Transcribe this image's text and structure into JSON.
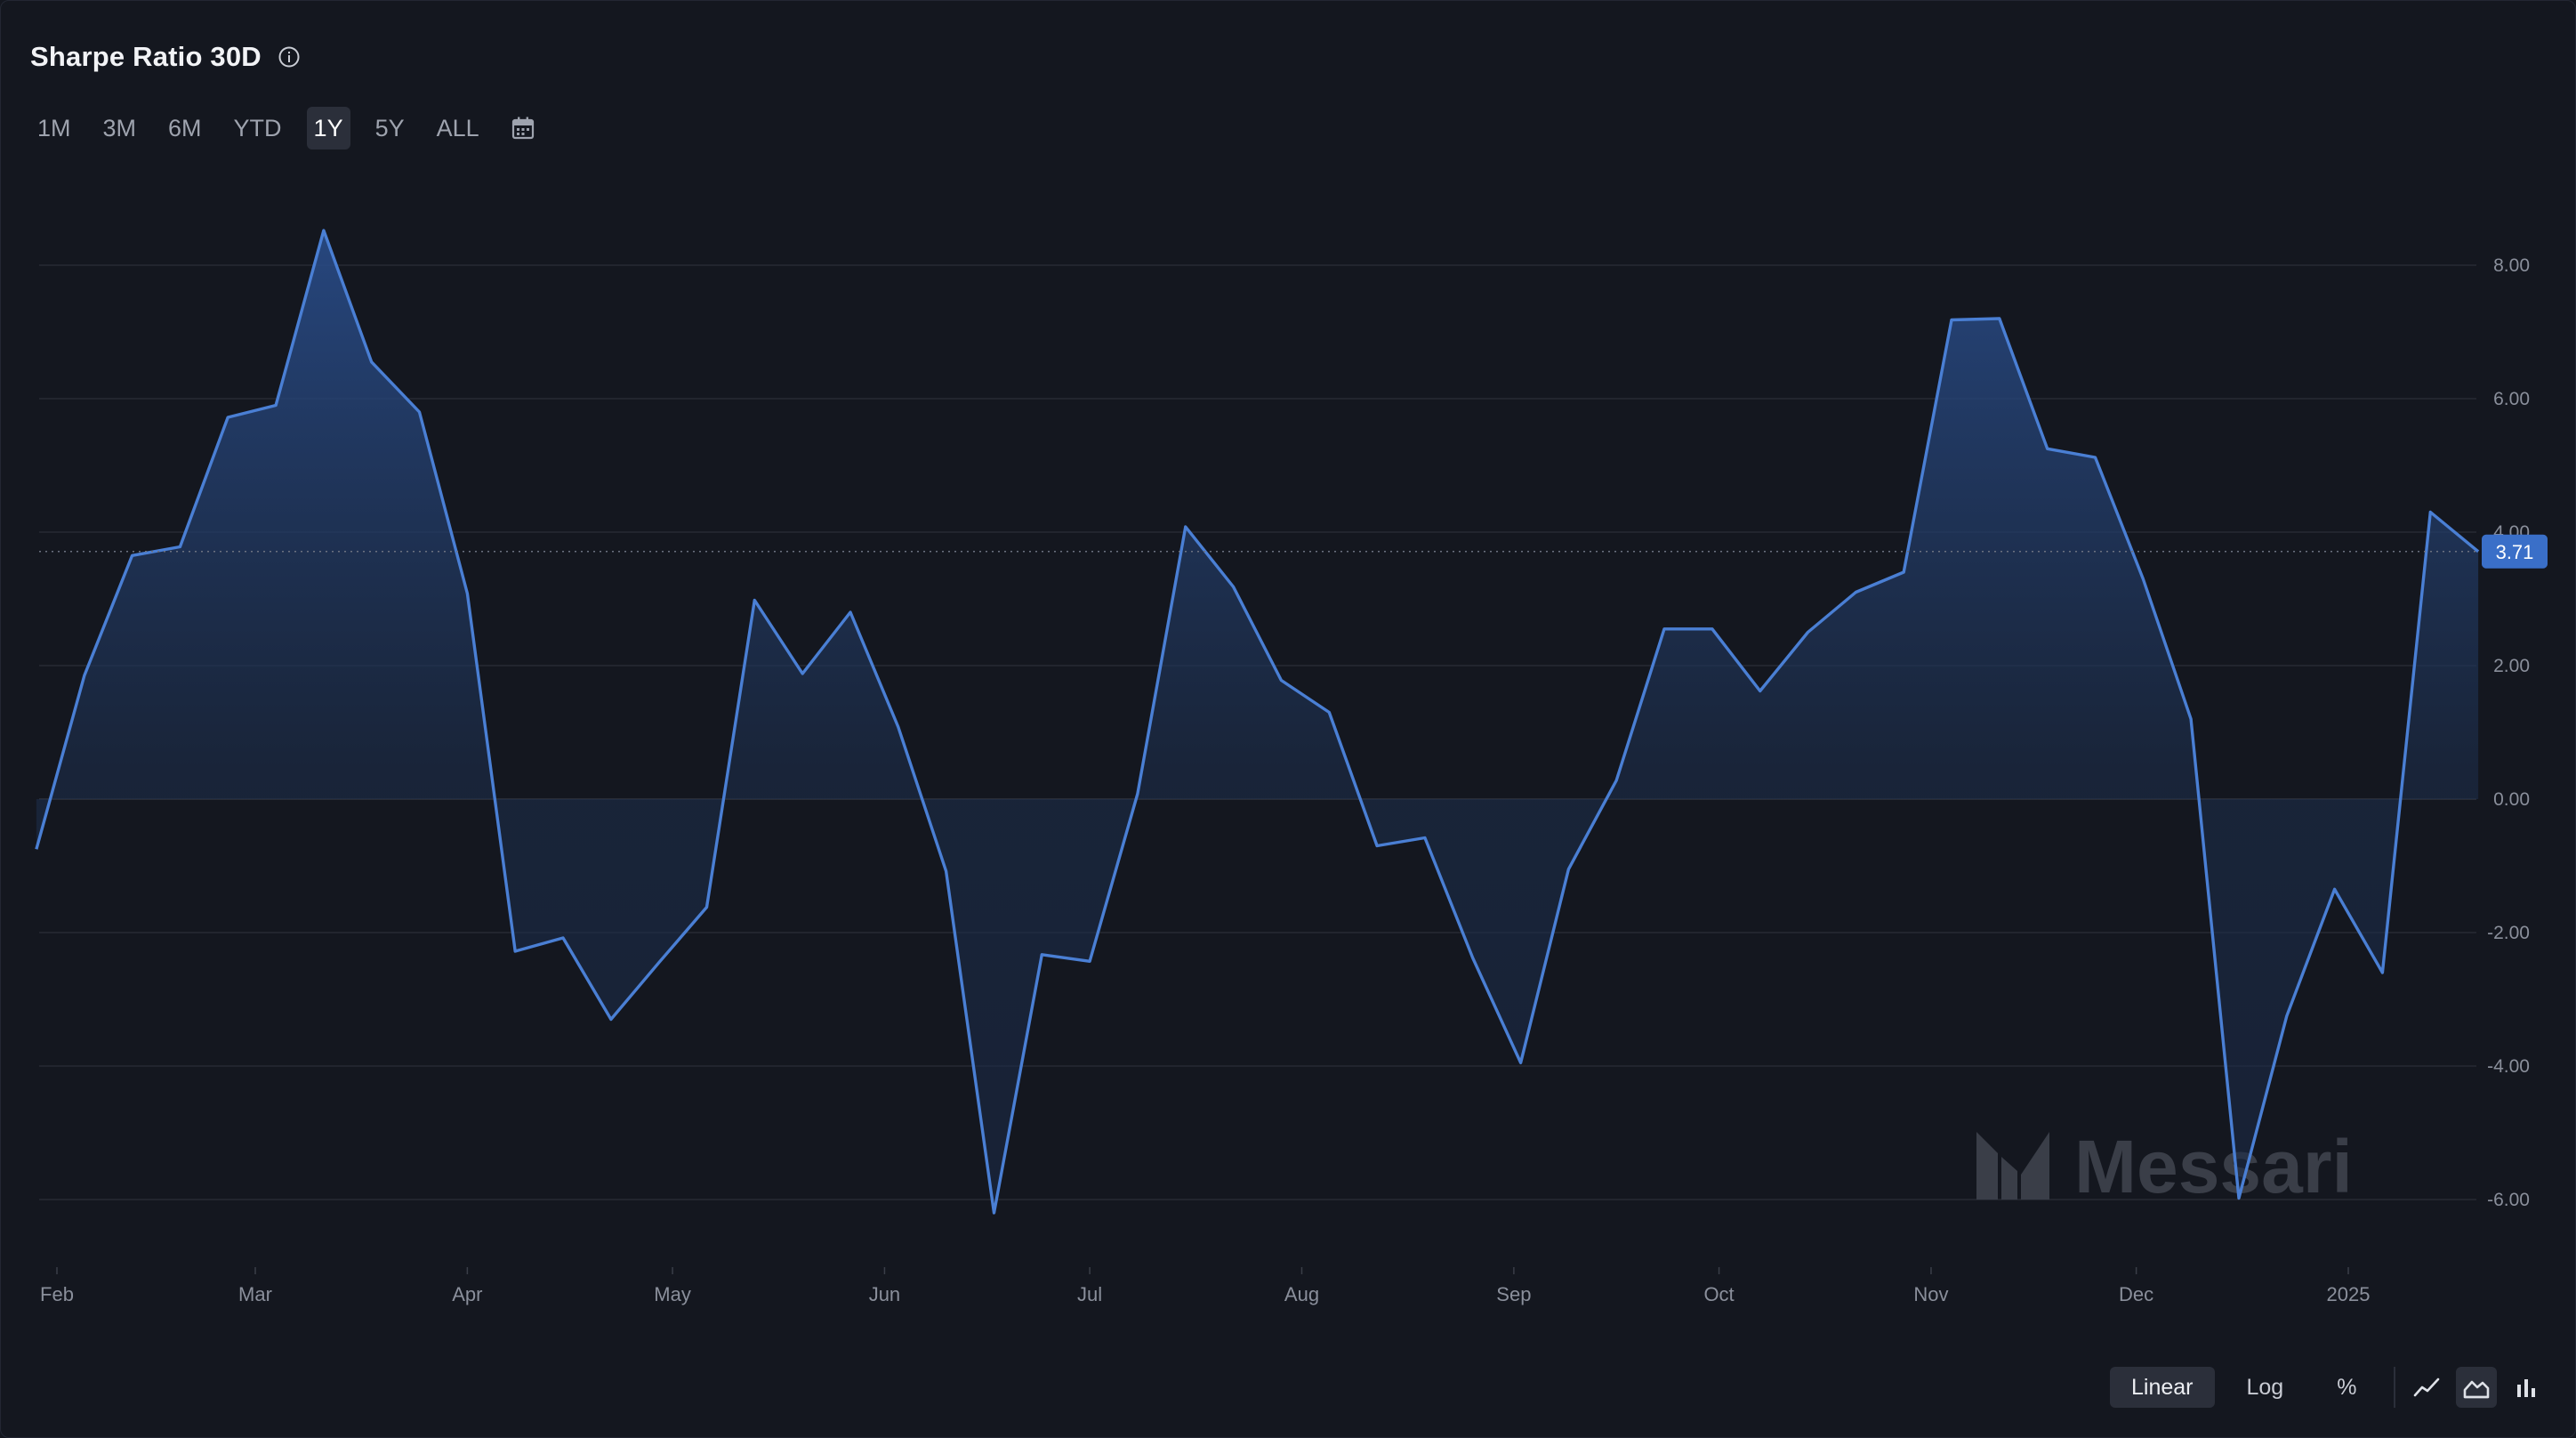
{
  "header": {
    "title": "Sharpe Ratio 30D"
  },
  "ranges": [
    "1M",
    "3M",
    "6M",
    "YTD",
    "1Y",
    "5Y",
    "ALL"
  ],
  "active_range": "1Y",
  "scale_buttons": [
    "Linear",
    "Log",
    "%"
  ],
  "active_scale": "Linear",
  "chart_types": [
    "line-chart-icon",
    "area-chart-icon",
    "bar-chart-icon"
  ],
  "active_chart_type": "area-chart-icon",
  "watermark": "Messari",
  "colors": {
    "background": "#14171f",
    "line": "#4a7fd4",
    "badge": "#3a6fc8",
    "grid": "#262a34",
    "text_muted": "#8a8f9b"
  },
  "chart_data": {
    "type": "area",
    "title": "Sharpe Ratio 30D",
    "xlabel": "",
    "ylabel": "",
    "ylim": [
      -6.2,
      8.6
    ],
    "y_ticks": [
      8,
      6,
      4,
      2,
      0,
      -2,
      -4,
      -6
    ],
    "y_tick_labels": [
      "8.00",
      "6.00",
      "4.00",
      "2.00",
      "0.00",
      "-2.00",
      "-4.00",
      "-6.00"
    ],
    "x_ticks": [
      {
        "date": "2024-02-01",
        "label": "Feb"
      },
      {
        "date": "2024-03-01",
        "label": "Mar"
      },
      {
        "date": "2024-04-01",
        "label": "Apr"
      },
      {
        "date": "2024-05-01",
        "label": "May"
      },
      {
        "date": "2024-06-01",
        "label": "Jun"
      },
      {
        "date": "2024-07-01",
        "label": "Jul"
      },
      {
        "date": "2024-08-01",
        "label": "Aug"
      },
      {
        "date": "2024-09-01",
        "label": "Sep"
      },
      {
        "date": "2024-10-01",
        "label": "Oct"
      },
      {
        "date": "2024-11-01",
        "label": "Nov"
      },
      {
        "date": "2024-12-01",
        "label": "Dec"
      },
      {
        "date": "2025-01-01",
        "label": "2025"
      }
    ],
    "current_value": 3.71,
    "current_value_label": "3.71",
    "grid": true,
    "series": [
      {
        "x": [
          "2024-01-29",
          "2024-02-05",
          "2024-02-12",
          "2024-02-19",
          "2024-02-26",
          "2024-03-04",
          "2024-03-11",
          "2024-03-18",
          "2024-03-25",
          "2024-04-01",
          "2024-04-08",
          "2024-04-15",
          "2024-04-22",
          "2024-04-29",
          "2024-05-06",
          "2024-05-13",
          "2024-05-20",
          "2024-05-27",
          "2024-06-03",
          "2024-06-10",
          "2024-06-17",
          "2024-06-24",
          "2024-07-01",
          "2024-07-08",
          "2024-07-15",
          "2024-07-22",
          "2024-07-29",
          "2024-08-05",
          "2024-08-12",
          "2024-08-19",
          "2024-08-26",
          "2024-09-02",
          "2024-09-09",
          "2024-09-16",
          "2024-09-23",
          "2024-09-30",
          "2024-10-07",
          "2024-10-14",
          "2024-10-21",
          "2024-10-28",
          "2024-11-04",
          "2024-11-11",
          "2024-11-18",
          "2024-11-25",
          "2024-12-02",
          "2024-12-09",
          "2024-12-16",
          "2024-12-23",
          "2024-12-30",
          "2025-01-06",
          "2025-01-13",
          "2025-01-20"
        ],
        "values": [
          -0.75,
          1.85,
          3.65,
          3.78,
          5.72,
          5.9,
          8.52,
          6.55,
          5.8,
          3.08,
          -2.28,
          -2.08,
          -3.3,
          -2.45,
          -1.62,
          2.98,
          1.88,
          2.8,
          1.08,
          -1.08,
          -6.2,
          -2.33,
          -2.43,
          0.08,
          4.08,
          3.18,
          1.78,
          1.3,
          -0.7,
          -0.58,
          -2.38,
          -3.95,
          -1.05,
          0.28,
          2.55,
          2.55,
          1.62,
          2.5,
          3.1,
          3.4,
          7.18,
          7.2,
          5.25,
          5.12,
          3.3,
          1.2,
          -5.98,
          -3.25,
          -1.35,
          -2.6,
          4.3,
          3.71
        ]
      }
    ]
  }
}
